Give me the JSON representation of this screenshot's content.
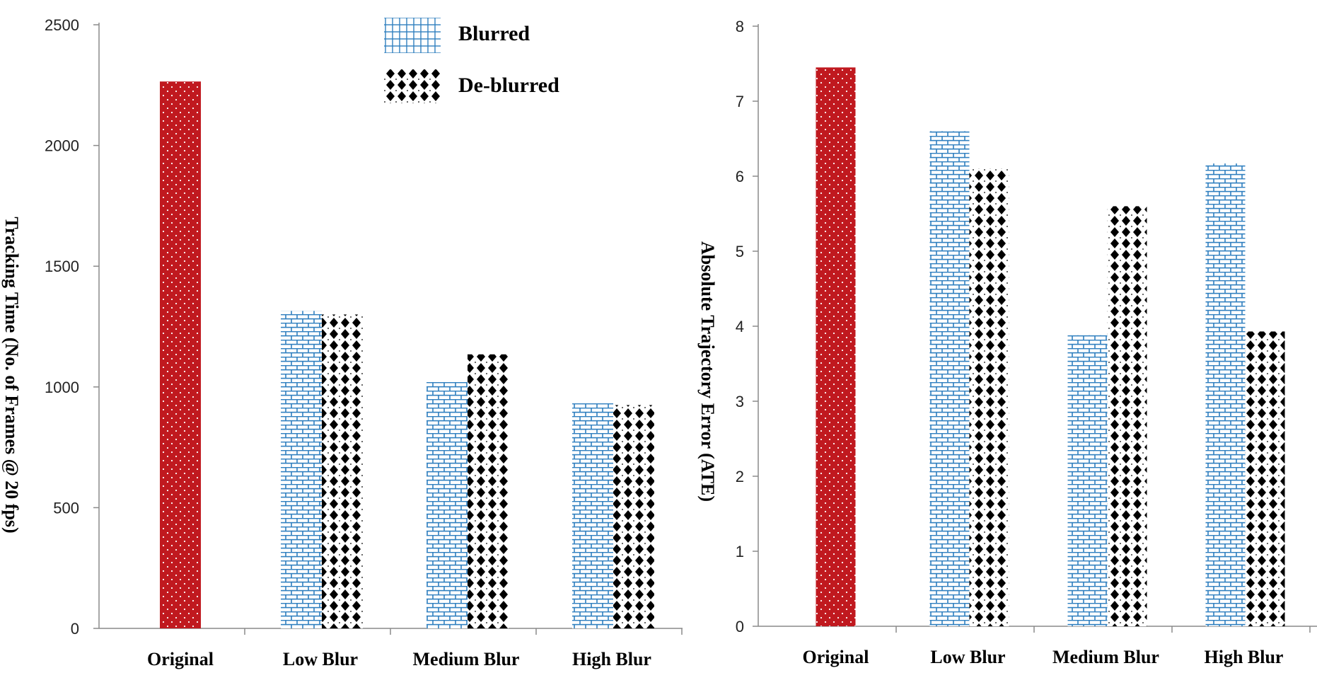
{
  "chart_data": [
    {
      "type": "bar",
      "ylabel": "Tracking Time (No. of Frames @ 20 fps)",
      "ylim": [
        0,
        2500
      ],
      "yticks": [
        0,
        500,
        1000,
        1500,
        2000,
        2500
      ],
      "categories": [
        "Original",
        "Low Blur",
        "Medium Blur",
        "High Blur"
      ],
      "series": [
        {
          "name": "Original",
          "values": [
            2265,
            null,
            null,
            null
          ]
        },
        {
          "name": "Blurred",
          "values": [
            null,
            1315,
            1020,
            932
          ]
        },
        {
          "name": "De-blurred",
          "values": [
            null,
            1300,
            1135,
            925
          ]
        }
      ],
      "legend": {
        "position": "top-center",
        "entries": [
          "Blurred",
          "De-blurred"
        ]
      }
    },
    {
      "type": "bar",
      "ylabel": "Absolute Trajectory Error (ATE)",
      "ylim": [
        0,
        8
      ],
      "yticks": [
        0,
        1,
        2,
        3,
        4,
        5,
        6,
        7,
        8
      ],
      "categories": [
        "Original",
        "Low Blur",
        "Medium Blur",
        "High Blur"
      ],
      "series": [
        {
          "name": "Original",
          "values": [
            7.45,
            null,
            null,
            null
          ]
        },
        {
          "name": "Blurred",
          "values": [
            null,
            6.6,
            3.88,
            6.17
          ]
        },
        {
          "name": "De-blurred",
          "values": [
            null,
            6.1,
            5.6,
            3.93
          ]
        }
      ]
    }
  ],
  "colors": {
    "original": "#c0191f",
    "blurred": "#2f7fbf",
    "deblurred": "#000000",
    "axis": "#8a8a8a"
  }
}
